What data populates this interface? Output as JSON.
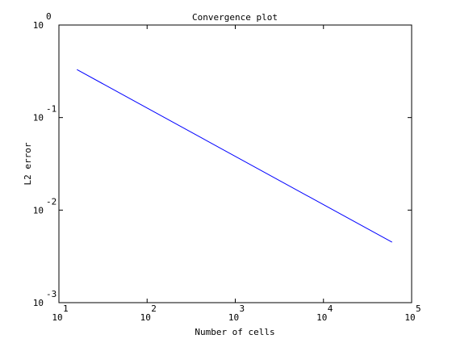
{
  "chart_data": {
    "type": "line",
    "title": "Convergence plot",
    "xlabel": "Number of cells",
    "ylabel": "L2 error",
    "x_scale": "log",
    "y_scale": "log",
    "xlim": [
      10,
      100000
    ],
    "ylim": [
      0.001,
      1
    ],
    "x_ticks": [
      {
        "value": 10,
        "base": "10",
        "exp": "1"
      },
      {
        "value": 100,
        "base": "10",
        "exp": "2"
      },
      {
        "value": 1000,
        "base": "10",
        "exp": "3"
      },
      {
        "value": 10000,
        "base": "10",
        "exp": "4"
      },
      {
        "value": 100000,
        "base": "10",
        "exp": "5"
      }
    ],
    "y_ticks": [
      {
        "value": 1,
        "base": "10",
        "exp": "0"
      },
      {
        "value": 0.1,
        "base": "10",
        "exp": "-1"
      },
      {
        "value": 0.01,
        "base": "10",
        "exp": "-2"
      },
      {
        "value": 0.001,
        "base": "10",
        "exp": "-3"
      }
    ],
    "grid": false,
    "series": [
      {
        "color": "#0000ff",
        "x": [
          16,
          60000
        ],
        "y": [
          0.33,
          0.0045
        ]
      }
    ]
  }
}
